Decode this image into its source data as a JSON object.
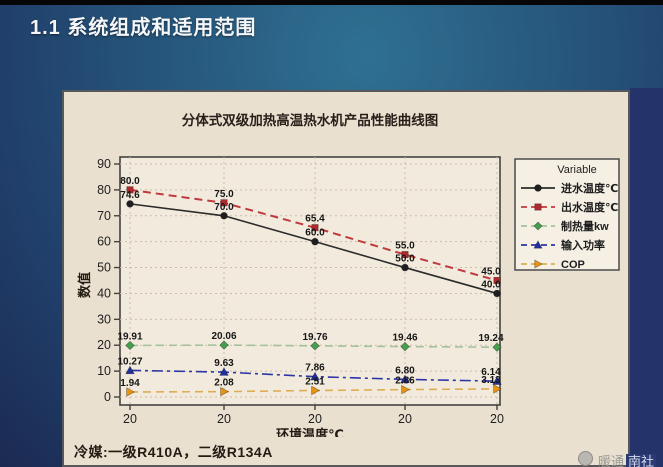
{
  "window": {
    "top_title": "1.1 系统组成和适用范围"
  },
  "slide": {
    "footnote": "冷媒:一级R410A，二级R134A",
    "watermark_prefix": "暖通",
    "watermark_suffix": "南社"
  },
  "chart_data": {
    "type": "line",
    "title": "分体式双级加热高温热水机产品性能曲线图",
    "xlabel": "环境温度℃",
    "ylabel": "数值",
    "ylim": [
      0,
      90
    ],
    "ytick_step": 10,
    "grid": true,
    "legend_title": "Variable",
    "legend_position": "right",
    "categories": [
      "20",
      "20",
      "20",
      "20",
      "20"
    ],
    "series": [
      {
        "name": "进水温度℃",
        "marker": "circle",
        "dash": "solid",
        "color": "#1f1f1f",
        "line_color": "#2b2b2b",
        "values": [
          74.6,
          70.0,
          60.0,
          50.0,
          40.0
        ],
        "labels": [
          "74.6",
          "70.0",
          "60.0",
          "50.0",
          "40.0"
        ]
      },
      {
        "name": "出水温度℃",
        "marker": "square",
        "dash": "dashed",
        "color": "#b02a2e",
        "line_color": "#bf3a3e",
        "values": [
          80.0,
          75.0,
          65.4,
          55.0,
          45.0
        ],
        "labels": [
          "80.0",
          "75.0",
          "65.4",
          "55.0",
          "45.0"
        ]
      },
      {
        "name": "制热量kw",
        "marker": "diamond",
        "dash": "dashed",
        "color": "#44a04e",
        "line_color": "#a4c29e",
        "values": [
          19.91,
          20.06,
          19.76,
          19.46,
          19.24
        ],
        "labels": [
          "19.91",
          "20.06",
          "19.76",
          "19.46",
          "19.24"
        ]
      },
      {
        "name": "输入功率",
        "marker": "triangle-up",
        "dash": "dashdot",
        "color": "#20309e",
        "line_color": "#2c35a3",
        "values": [
          10.27,
          9.63,
          7.86,
          6.8,
          6.14
        ],
        "labels": [
          "10.27",
          "9.63",
          "7.86",
          "6.80",
          "6.14"
        ]
      },
      {
        "name": "COP",
        "marker": "triangle-right",
        "dash": "dashed",
        "color": "#e8940f",
        "line_color": "#ddad55",
        "values": [
          1.94,
          2.08,
          2.51,
          2.86,
          3.13
        ],
        "labels": [
          "1.94",
          "2.08",
          "2.51",
          "2.86",
          "3.13"
        ]
      }
    ]
  }
}
